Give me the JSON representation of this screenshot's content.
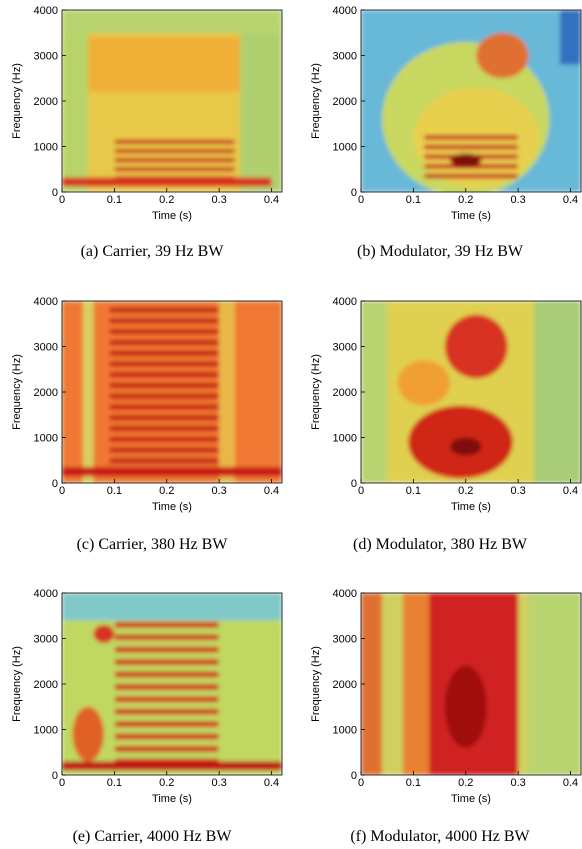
{
  "chart_data": [
    {
      "type": "spectrogram",
      "caption": "(a) Carrier, 39 Hz BW",
      "xlabel": "Time (s)",
      "ylabel": "Frequency (Hz)",
      "xlim": [
        0,
        0.42
      ],
      "ylim": [
        0,
        4000
      ],
      "xticks": [
        0,
        0.1,
        0.2,
        0.3,
        0.4
      ],
      "yticks": [
        0,
        1000,
        2000,
        3000,
        4000
      ]
    },
    {
      "type": "spectrogram",
      "caption": "(b) Modulator, 39 Hz BW",
      "xlabel": "Time (s)",
      "ylabel": "Frequency (Hz)",
      "xlim": [
        0,
        0.42
      ],
      "ylim": [
        0,
        4000
      ],
      "xticks": [
        0,
        0.1,
        0.2,
        0.3,
        0.4
      ],
      "yticks": [
        0,
        1000,
        2000,
        3000,
        4000
      ]
    },
    {
      "type": "spectrogram",
      "caption": "(c) Carrier, 380 Hz BW",
      "xlabel": "Time (s)",
      "ylabel": "Frequency (Hz)",
      "xlim": [
        0,
        0.42
      ],
      "ylim": [
        0,
        4000
      ],
      "xticks": [
        0,
        0.1,
        0.2,
        0.3,
        0.4
      ],
      "yticks": [
        0,
        1000,
        2000,
        3000,
        4000
      ]
    },
    {
      "type": "spectrogram",
      "caption": "(d) Modulator, 380 Hz BW",
      "xlabel": "Time (s)",
      "ylabel": "Frequency (Hz)",
      "xlim": [
        0,
        0.42
      ],
      "ylim": [
        0,
        4000
      ],
      "xticks": [
        0,
        0.1,
        0.2,
        0.3,
        0.4
      ],
      "yticks": [
        0,
        1000,
        2000,
        3000,
        4000
      ]
    },
    {
      "type": "spectrogram",
      "caption": "(e) Carrier, 4000 Hz BW",
      "xlabel": "Time (s)",
      "ylabel": "Frequency (Hz)",
      "xlim": [
        0,
        0.42
      ],
      "ylim": [
        0,
        4000
      ],
      "xticks": [
        0,
        0.1,
        0.2,
        0.3,
        0.4
      ],
      "yticks": [
        0,
        1000,
        2000,
        3000,
        4000
      ]
    },
    {
      "type": "spectrogram",
      "caption": "(f) Modulator, 4000 Hz BW",
      "xlabel": "Time (s)",
      "ylabel": "Frequency (Hz)",
      "xlim": [
        0,
        0.42
      ],
      "ylim": [
        0,
        4000
      ],
      "xticks": [
        0,
        0.1,
        0.2,
        0.3,
        0.4
      ],
      "yticks": [
        0,
        1000,
        2000,
        3000,
        4000
      ]
    }
  ]
}
